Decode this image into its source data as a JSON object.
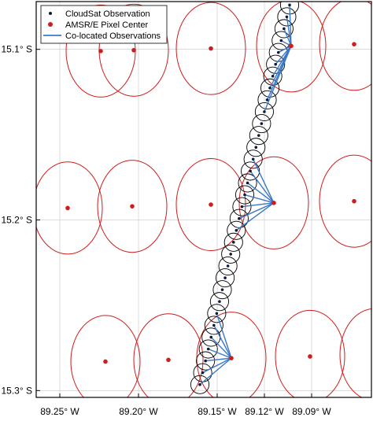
{
  "chart_data": {
    "type": "scatter",
    "title": "",
    "xlabel": "",
    "ylabel": "",
    "xlim": [
      -89.265,
      -89.052
    ],
    "ylim": [
      -15.304,
      -15.072
    ],
    "grid": true,
    "legend_placement": "top-left",
    "colors": {
      "cloudsat": "#0a1a3a",
      "amsre": "#d01c1c",
      "colocated": "#3a78c8",
      "circle": "#000000",
      "grid": "#c8c8c8"
    },
    "x_ticks": [
      {
        "value": -89.25,
        "label": "89.25° W"
      },
      {
        "value": -89.2,
        "label": "89.20° W"
      },
      {
        "value": -89.15,
        "label": "89.15° W"
      },
      {
        "value": -89.12,
        "label": "89.12° W"
      },
      {
        "value": -89.09,
        "label": "89.09° W"
      }
    ],
    "y_ticks": [
      {
        "value": -15.1,
        "label": "15.1° S"
      },
      {
        "value": -15.2,
        "label": "15.2° S"
      },
      {
        "value": -15.3,
        "label": "15.3° S"
      }
    ],
    "legend": [
      {
        "label": "CloudSat Observation",
        "marker": "dot"
      },
      {
        "label": "AMSR/E Pixel Center",
        "marker": "red-dot"
      },
      {
        "label": "Co-located Observations",
        "marker": "line"
      }
    ],
    "amsre_footprint": {
      "rx_deg": 0.022,
      "ry_deg": 0.027
    },
    "cloudsat_footprint": {
      "r_deg": 0.0058
    },
    "amsre_centers": [
      {
        "x": -89.224,
        "y": -15.101
      },
      {
        "x": -89.203,
        "y": -15.1005
      },
      {
        "x": -89.154,
        "y": -15.0995
      },
      {
        "x": -89.103,
        "y": -15.098
      },
      {
        "x": -89.063,
        "y": -15.097
      },
      {
        "x": -89.245,
        "y": -15.193
      },
      {
        "x": -89.204,
        "y": -15.192
      },
      {
        "x": -89.154,
        "y": -15.191
      },
      {
        "x": -89.114,
        "y": -15.19
      },
      {
        "x": -89.063,
        "y": -15.189
      },
      {
        "x": -89.221,
        "y": -15.283
      },
      {
        "x": -89.181,
        "y": -15.282
      },
      {
        "x": -89.141,
        "y": -15.281
      },
      {
        "x": -89.091,
        "y": -15.28
      },
      {
        "x": -89.05,
        "y": -15.279
      }
    ],
    "cloudsat_track": {
      "start": {
        "x": -89.161,
        "y": -15.2965
      },
      "end": {
        "x": -89.104,
        "y": -15.074
      },
      "count": 33
    },
    "colocated_groups": [
      {
        "center_index": 3,
        "track_indices": [
          23,
          24,
          25,
          26,
          27,
          28,
          29,
          30,
          31,
          32
        ]
      },
      {
        "center_index": 8,
        "track_indices": [
          13,
          14,
          15,
          16,
          17,
          18,
          19
        ]
      },
      {
        "center_index": 12,
        "track_indices": [
          0,
          1,
          2,
          3,
          4,
          5,
          6
        ]
      }
    ]
  }
}
